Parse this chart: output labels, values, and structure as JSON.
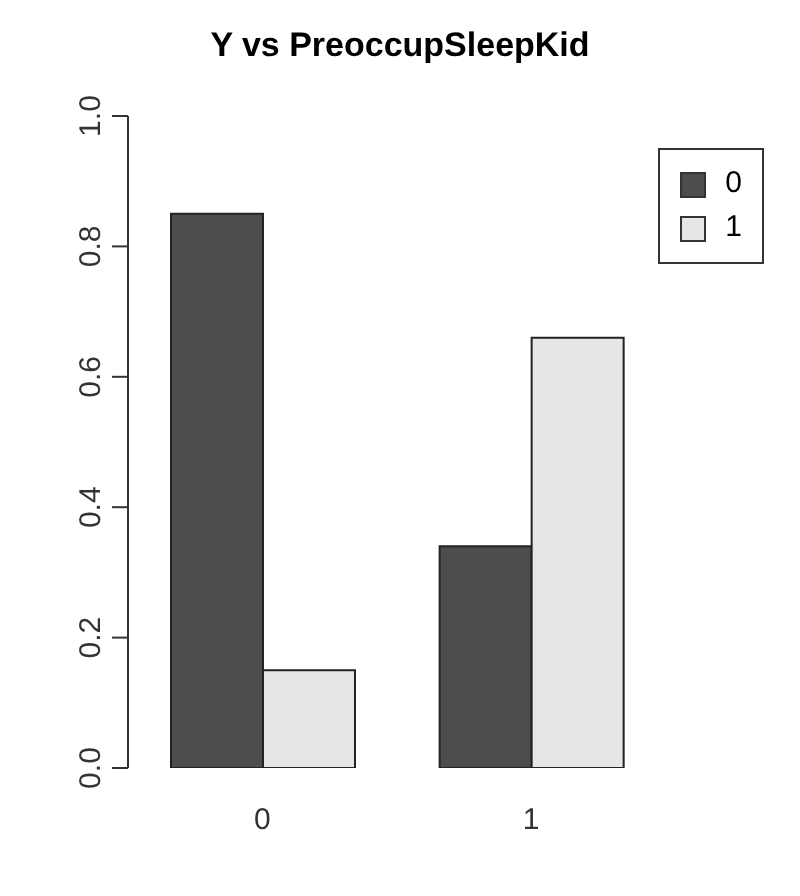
{
  "chart_data": {
    "type": "bar",
    "title": "Y vs PreoccupSleepKid",
    "categories": [
      "0",
      "1"
    ],
    "series": [
      {
        "name": "0",
        "color": "#4d4d4d",
        "values": [
          0.85,
          0.34
        ]
      },
      {
        "name": "1",
        "color": "#e6e6e6",
        "values": [
          0.15,
          0.66
        ]
      }
    ],
    "ylim": [
      0,
      1
    ],
    "yticks": [
      {
        "value": 0,
        "label": "0.0"
      },
      {
        "value": 0.2,
        "label": "0.2"
      },
      {
        "value": 0.4,
        "label": "0.4"
      },
      {
        "value": 0.6,
        "label": "0.6"
      },
      {
        "value": 0.8,
        "label": "0.8"
      },
      {
        "value": 1,
        "label": "1.0"
      }
    ],
    "grid": false,
    "legend": "top right"
  }
}
